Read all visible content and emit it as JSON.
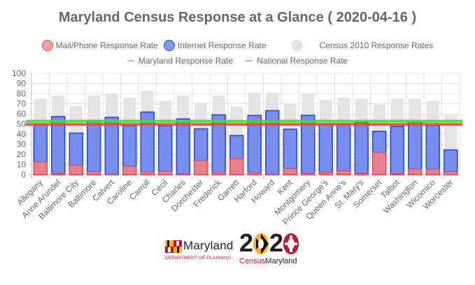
{
  "chart_data": {
    "type": "bar",
    "title": "Maryland Census Response at a Glance ( 2020-04-16 )",
    "xlabel": "",
    "ylabel": "",
    "ylim": [
      0,
      100
    ],
    "yticks": [
      0,
      10,
      20,
      30,
      40,
      50,
      60,
      70,
      80,
      90,
      100
    ],
    "grid": true,
    "legend_position": "top",
    "categories": [
      "Allegany",
      "Anne Arundel",
      "Baltimore City",
      "Baltimore",
      "Calvert",
      "Caroline",
      "Carroll",
      "Cecil",
      "Charles",
      "Dorchester",
      "Frederick",
      "Garrett",
      "Harford",
      "Howard",
      "Kent",
      "Montgomery",
      "Prince George's",
      "Queen Anne's",
      "St. Mary's",
      "Somerset",
      "Talbot",
      "Washington",
      "Wicomico",
      "Worcester"
    ],
    "series": [
      {
        "name": "Mail/Phone Response Rate",
        "kind": "bar",
        "color": "#f08080",
        "border": "#e8474f",
        "values": [
          12.6,
          1.0,
          9.4,
          3.0,
          0.5,
          8.5,
          2.4,
          3.3,
          0.6,
          14.2,
          2.0,
          16.0,
          2.0,
          0.5,
          6.0,
          1.2,
          2.3,
          3.8,
          1.2,
          22.2,
          0.8,
          5.6,
          5.4,
          3.0
        ]
      },
      {
        "name": "Internet Response Rate",
        "kind": "bar",
        "color": "#6b84ee",
        "border": "#1f3fe0",
        "values": [
          49.0,
          57.3,
          41.0,
          53.6,
          56.6,
          48.4,
          61.8,
          48.2,
          55.0,
          45.2,
          59.0,
          38.6,
          58.4,
          63.2,
          44.8,
          58.6,
          50.2,
          50.2,
          51.6,
          42.8,
          47.6,
          52.0,
          48.6,
          24.4
        ]
      },
      {
        "name": "Census 2010 Response Rates",
        "kind": "bar",
        "color": "#e3e3e3",
        "values": [
          75,
          78,
          68,
          78,
          80,
          76,
          83,
          73,
          78,
          71,
          78,
          67,
          81,
          81,
          70,
          80,
          74,
          76,
          75,
          69,
          75,
          75,
          73,
          59
        ]
      },
      {
        "name": "Maryland Response Rate",
        "kind": "line",
        "color": "#33e61a",
        "value": 52.8
      },
      {
        "name": "National Response Rate",
        "kind": "line",
        "color": "#e8474f",
        "value": 49.6
      }
    ]
  },
  "legend": [
    {
      "label": "Mail/Phone Response Rate",
      "fill": "#f4a0a0",
      "border": "#e8474f"
    },
    {
      "label": "Internet Response Rate",
      "fill": "#8099f0",
      "border": "#1f3fe0"
    },
    {
      "label": "Census 2010 Response Rates",
      "fill": "#e3e3e3",
      "border": "#e3e3e3"
    },
    {
      "label": "Maryland Response Rate",
      "fill": "#8de07a"
    },
    {
      "label": "National Response Rate",
      "fill": "#f4a0a0"
    }
  ],
  "logos": {
    "md_name": "Maryland",
    "md_dept": "DEPARTMENT OF PLANNING",
    "census_year_a": "2",
    "census_year_b": "2",
    "census_sub_a": "Census",
    "census_sub_b": "Maryland"
  }
}
